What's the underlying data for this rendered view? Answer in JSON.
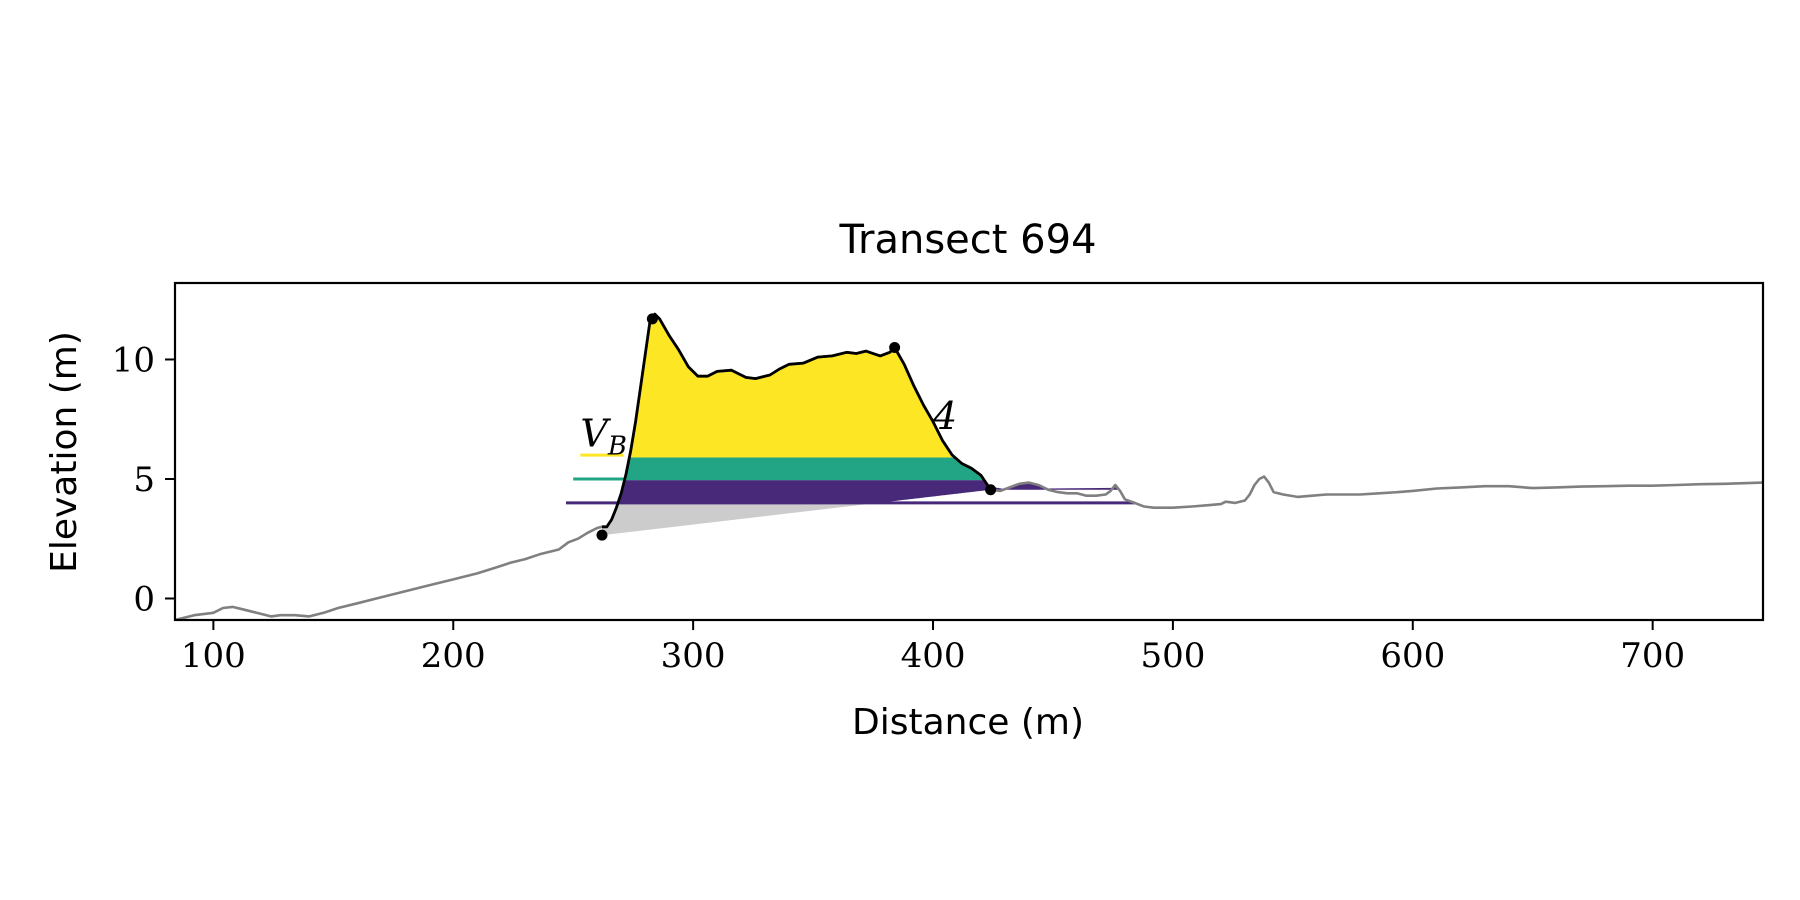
{
  "chart_data": {
    "type": "area",
    "title": "Transect 694",
    "xlabel": "Distance (m)",
    "ylabel": "Elevation (m)",
    "xlim": [
      84,
      746
    ],
    "ylim": [
      -0.9,
      13.2
    ],
    "xticks": [
      100,
      200,
      300,
      400,
      500,
      600,
      700
    ],
    "yticks": [
      0,
      5,
      10
    ],
    "grid": false,
    "colors": {
      "ground": "#808080",
      "dune_outline": "#000000",
      "base_shading": "#cccccc",
      "layer_top": "#fde725",
      "layer_mid": "#21a585",
      "layer_low": "#482878",
      "marker": "#000000"
    },
    "profile": [
      [
        84,
        -0.9
      ],
      [
        92,
        -0.7
      ],
      [
        100,
        -0.6
      ],
      [
        104,
        -0.4
      ],
      [
        108,
        -0.35
      ],
      [
        112,
        -0.45
      ],
      [
        118,
        -0.6
      ],
      [
        124,
        -0.75
      ],
      [
        128,
        -0.7
      ],
      [
        134,
        -0.7
      ],
      [
        140,
        -0.75
      ],
      [
        146,
        -0.6
      ],
      [
        152,
        -0.4
      ],
      [
        160,
        -0.2
      ],
      [
        170,
        0.05
      ],
      [
        180,
        0.3
      ],
      [
        190,
        0.55
      ],
      [
        200,
        0.8
      ],
      [
        210,
        1.05
      ],
      [
        218,
        1.3
      ],
      [
        224,
        1.5
      ],
      [
        230,
        1.65
      ],
      [
        236,
        1.85
      ],
      [
        240,
        1.95
      ],
      [
        244,
        2.05
      ],
      [
        248,
        2.35
      ],
      [
        252,
        2.5
      ],
      [
        256,
        2.75
      ],
      [
        260,
        2.95
      ],
      [
        262,
        3.0
      ],
      [
        264,
        3.0
      ],
      [
        266,
        3.3
      ],
      [
        268,
        3.8
      ],
      [
        270,
        4.4
      ],
      [
        272,
        5.2
      ],
      [
        274,
        6.2
      ],
      [
        276,
        7.4
      ],
      [
        278,
        8.8
      ],
      [
        280,
        10.2
      ],
      [
        282,
        11.6
      ],
      [
        284,
        11.9
      ],
      [
        286,
        11.7
      ],
      [
        290,
        11.0
      ],
      [
        294,
        10.4
      ],
      [
        298,
        9.7
      ],
      [
        302,
        9.3
      ],
      [
        306,
        9.3
      ],
      [
        310,
        9.5
      ],
      [
        316,
        9.55
      ],
      [
        322,
        9.25
      ],
      [
        326,
        9.2
      ],
      [
        332,
        9.35
      ],
      [
        336,
        9.6
      ],
      [
        340,
        9.8
      ],
      [
        346,
        9.85
      ],
      [
        352,
        10.1
      ],
      [
        358,
        10.15
      ],
      [
        364,
        10.3
      ],
      [
        368,
        10.25
      ],
      [
        372,
        10.35
      ],
      [
        378,
        10.15
      ],
      [
        382,
        10.3
      ],
      [
        384,
        10.5
      ],
      [
        388,
        9.8
      ],
      [
        392,
        8.9
      ],
      [
        396,
        8.1
      ],
      [
        400,
        7.4
      ],
      [
        404,
        6.6
      ],
      [
        408,
        6.0
      ],
      [
        412,
        5.65
      ],
      [
        416,
        5.45
      ],
      [
        420,
        5.15
      ],
      [
        424,
        4.55
      ],
      [
        428,
        4.5
      ],
      [
        432,
        4.65
      ],
      [
        436,
        4.8
      ],
      [
        440,
        4.85
      ],
      [
        444,
        4.75
      ],
      [
        448,
        4.55
      ],
      [
        452,
        4.45
      ],
      [
        456,
        4.4
      ],
      [
        460,
        4.4
      ],
      [
        464,
        4.3
      ],
      [
        468,
        4.3
      ],
      [
        472,
        4.35
      ],
      [
        474,
        4.5
      ],
      [
        476,
        4.75
      ],
      [
        478,
        4.5
      ],
      [
        480,
        4.15
      ],
      [
        484,
        4.0
      ],
      [
        488,
        3.85
      ],
      [
        492,
        3.8
      ],
      [
        500,
        3.8
      ],
      [
        508,
        3.85
      ],
      [
        514,
        3.9
      ],
      [
        520,
        3.95
      ],
      [
        522,
        4.05
      ],
      [
        526,
        4.0
      ],
      [
        530,
        4.1
      ],
      [
        532,
        4.35
      ],
      [
        534,
        4.75
      ],
      [
        536,
        5.0
      ],
      [
        538,
        5.1
      ],
      [
        540,
        4.85
      ],
      [
        542,
        4.45
      ],
      [
        546,
        4.35
      ],
      [
        552,
        4.25
      ],
      [
        558,
        4.3
      ],
      [
        564,
        4.35
      ],
      [
        570,
        4.35
      ],
      [
        578,
        4.35
      ],
      [
        586,
        4.4
      ],
      [
        594,
        4.45
      ],
      [
        600,
        4.5
      ],
      [
        610,
        4.6
      ],
      [
        620,
        4.65
      ],
      [
        630,
        4.7
      ],
      [
        640,
        4.7
      ],
      [
        650,
        4.62
      ],
      [
        660,
        4.65
      ],
      [
        670,
        4.68
      ],
      [
        680,
        4.7
      ],
      [
        690,
        4.72
      ],
      [
        700,
        4.72
      ],
      [
        710,
        4.75
      ],
      [
        720,
        4.78
      ],
      [
        730,
        4.8
      ],
      [
        746,
        4.85
      ]
    ],
    "dune_range": [
      262,
      424
    ],
    "base_line": [
      [
        262,
        2.65
      ],
      [
        424,
        4.55
      ]
    ],
    "markers": [
      [
        262,
        2.65
      ],
      [
        283,
        11.7
      ],
      [
        384,
        10.5
      ],
      [
        424,
        4.55
      ]
    ],
    "layers": [
      {
        "label": "V_B",
        "bottom": 5.9,
        "top": 13.2,
        "color_key": "layer_top",
        "fill_to": 410,
        "legend_x": [
          253,
          271
        ],
        "legend_y": 6.0
      },
      {
        "label": "",
        "bottom": 4.95,
        "top": 5.9,
        "color_key": "layer_mid",
        "fill_to": 424,
        "legend_x": [
          250,
          271
        ],
        "legend_y": 5.0
      },
      {
        "label": "",
        "bottom": 4.0,
        "top": 4.95,
        "color_key": "layer_low",
        "fill_to": 484,
        "legend_x": [
          247,
          484
        ],
        "legend_y": 4.0
      }
    ],
    "annotations": [
      {
        "text": "V",
        "sub": "B",
        "x": 253,
        "y": 6.35
      },
      {
        "text": "4",
        "x": 400,
        "y": 7.1
      }
    ]
  }
}
